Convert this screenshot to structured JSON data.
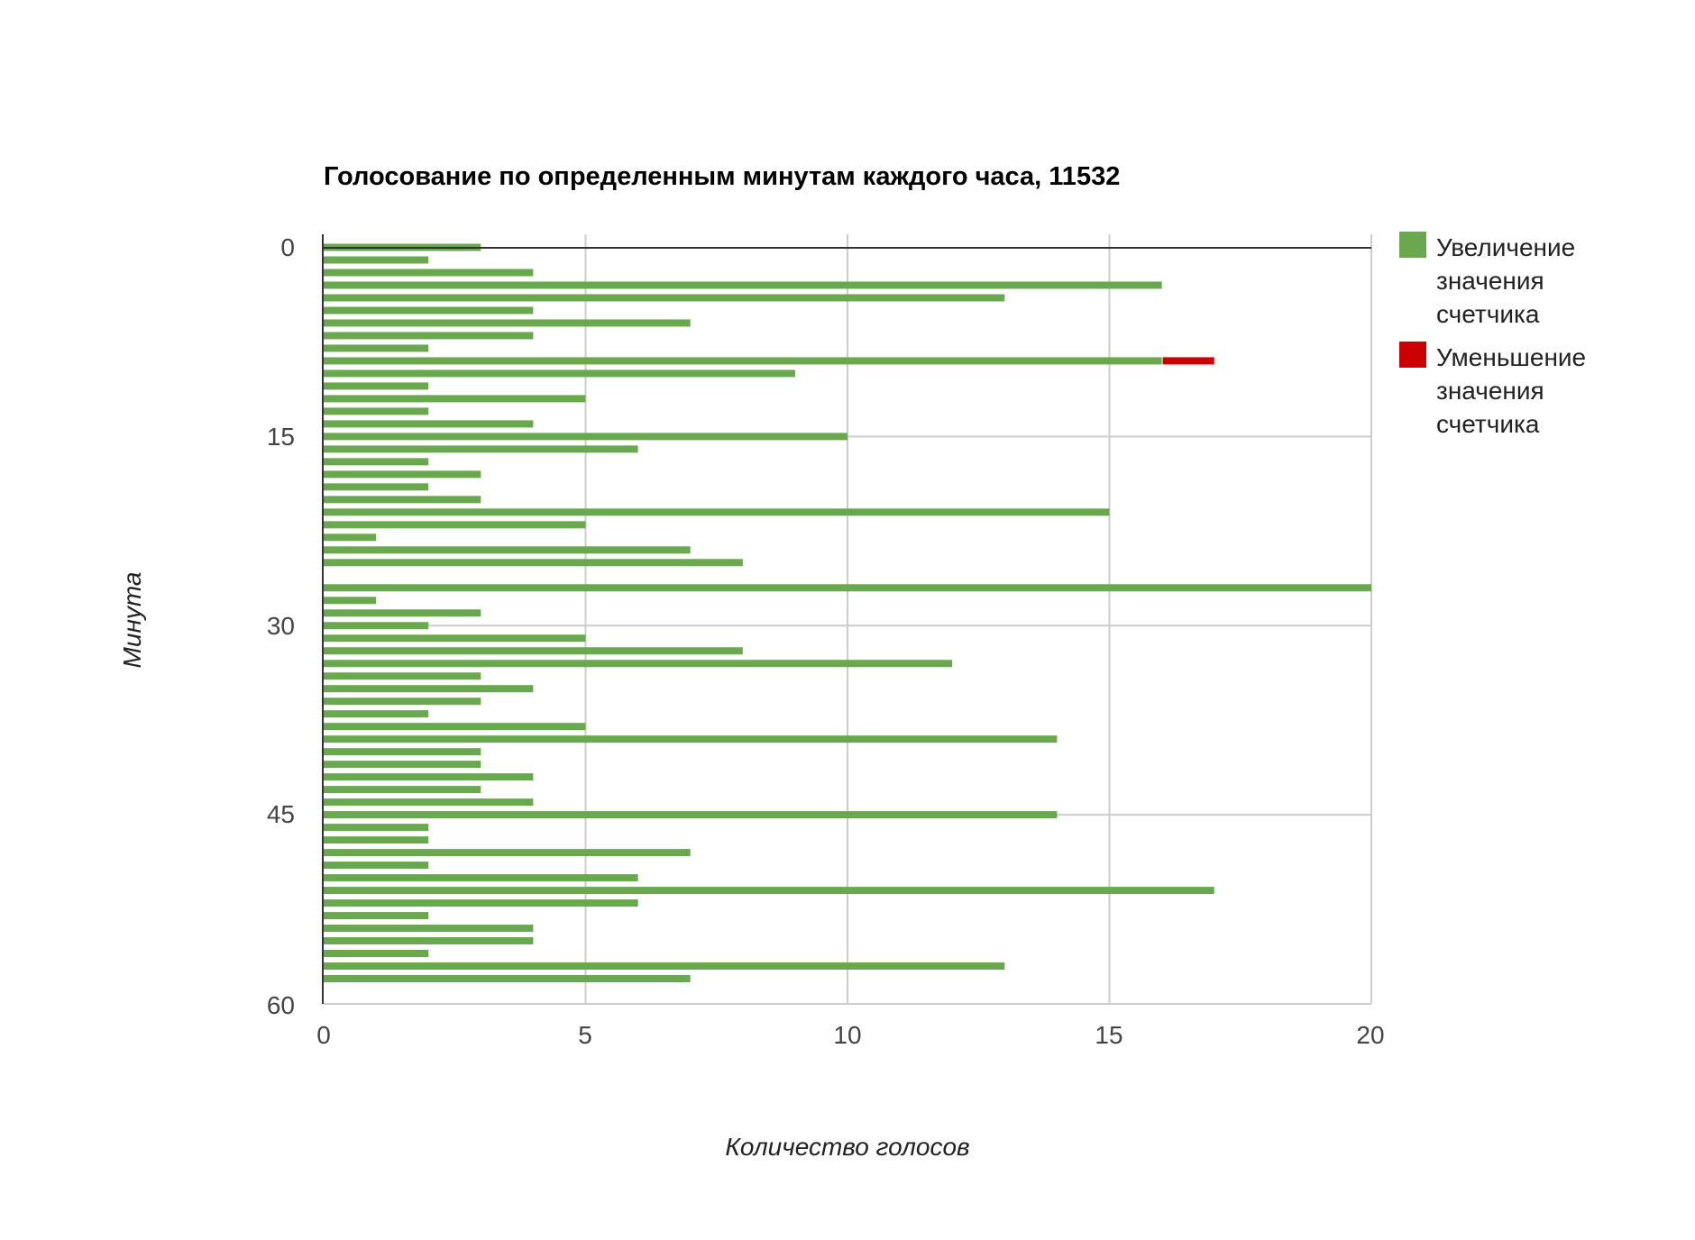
{
  "chart_data": {
    "type": "bar",
    "orientation": "horizontal",
    "stacked": true,
    "title": "Голосование по определенным минутам каждого часа, 11532",
    "xlabel": "Количество голосов",
    "ylabel": "Минута",
    "xlim": [
      0,
      20
    ],
    "ylim": [
      0,
      60
    ],
    "x_ticks": [
      "0",
      "5",
      "10",
      "15",
      "20"
    ],
    "y_ticks": [
      "0",
      "15",
      "30",
      "45",
      "60"
    ],
    "grid": true,
    "legend_position": "right",
    "categories": [
      0,
      1,
      2,
      3,
      4,
      5,
      6,
      7,
      8,
      9,
      10,
      11,
      12,
      13,
      14,
      15,
      16,
      17,
      18,
      19,
      20,
      21,
      22,
      23,
      24,
      25,
      26,
      27,
      28,
      29,
      30,
      31,
      32,
      33,
      34,
      35,
      36,
      37,
      38,
      39,
      40,
      41,
      42,
      43,
      44,
      45,
      46,
      47,
      48,
      49,
      50,
      51,
      52,
      53,
      54,
      55,
      56,
      57,
      58,
      59
    ],
    "series": [
      {
        "name": "Увеличение значения счетчика",
        "color": "#6aa84f",
        "values": [
          3,
          2,
          4,
          16,
          13,
          4,
          7,
          4,
          2,
          16,
          9,
          2,
          5,
          2,
          4,
          10,
          6,
          2,
          3,
          2,
          3,
          15,
          5,
          1,
          7,
          8,
          0,
          20,
          1,
          3,
          2,
          5,
          8,
          12,
          3,
          4,
          3,
          2,
          5,
          14,
          3,
          3,
          4,
          3,
          4,
          14,
          2,
          2,
          7,
          2,
          6,
          17,
          6,
          2,
          4,
          4,
          2,
          13,
          7,
          0
        ]
      },
      {
        "name": "Уменьшение значения счетчика",
        "color": "#cc0000",
        "values": [
          0,
          0,
          0,
          0,
          0,
          0,
          0,
          0,
          0,
          1,
          0,
          0,
          0,
          0,
          0,
          0,
          0,
          0,
          0,
          0,
          0,
          0,
          0,
          0,
          0,
          0,
          0,
          0,
          0,
          0,
          0,
          0,
          0,
          0,
          0,
          0,
          0,
          0,
          0,
          0,
          0,
          0,
          0,
          0,
          0,
          0,
          0,
          0,
          0,
          0,
          0,
          0,
          0,
          0,
          0,
          0,
          0,
          0,
          0,
          0
        ]
      }
    ]
  },
  "legend": {
    "items": [
      {
        "label_lines": [
          "Увеличение",
          "значения",
          "счетчика"
        ],
        "color": "#6aa84f"
      },
      {
        "label_lines": [
          "Уменьшение",
          "значения",
          "счетчика"
        ],
        "color": "#cc0000"
      }
    ]
  },
  "colors": {
    "gridline": "#cccccc",
    "axis": "#333333",
    "tick_text": "#444444"
  }
}
